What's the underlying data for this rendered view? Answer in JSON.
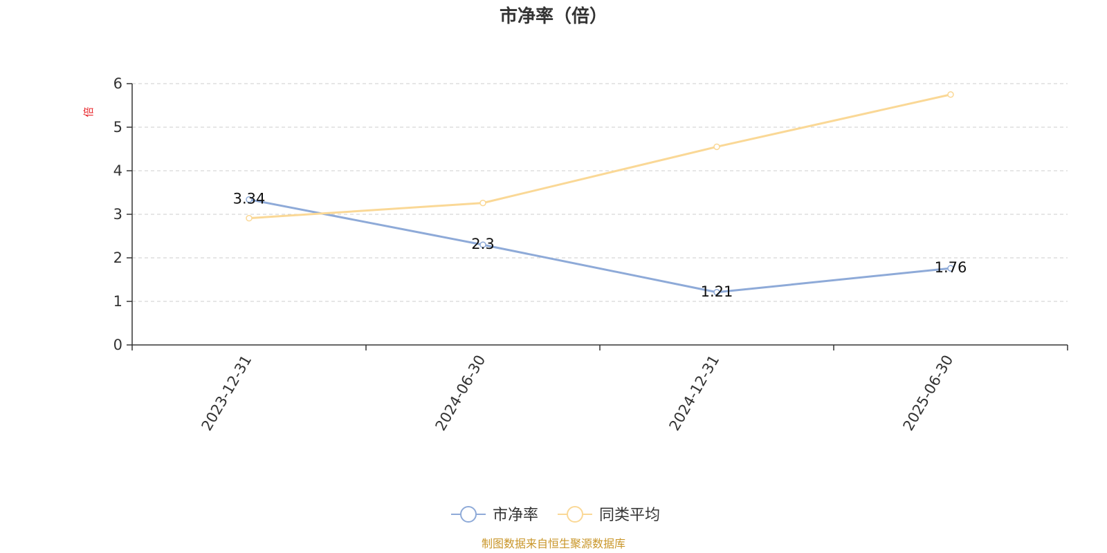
{
  "chart_data": {
    "type": "line",
    "title": "市净率（倍）",
    "ylabel": "倍",
    "xlabel": "",
    "ylim": [
      0,
      6
    ],
    "yticks": [
      0,
      1,
      2,
      3,
      4,
      5,
      6
    ],
    "categories": [
      "2023-12-31",
      "2024-06-30",
      "2024-12-31",
      "2025-06-30"
    ],
    "series": [
      {
        "name": "市净率",
        "values": [
          3.34,
          2.3,
          1.21,
          1.76
        ],
        "color": "#8eaad8",
        "labels": [
          "3.34",
          "2.3",
          "1.21",
          "1.76"
        ]
      },
      {
        "name": "同类平均",
        "values": [
          2.91,
          3.26,
          4.55,
          5.75
        ],
        "color": "#fad896"
      }
    ],
    "grid": true,
    "legend_position": "bottom"
  },
  "source_note": "制图数据来自恒生聚源数据库"
}
